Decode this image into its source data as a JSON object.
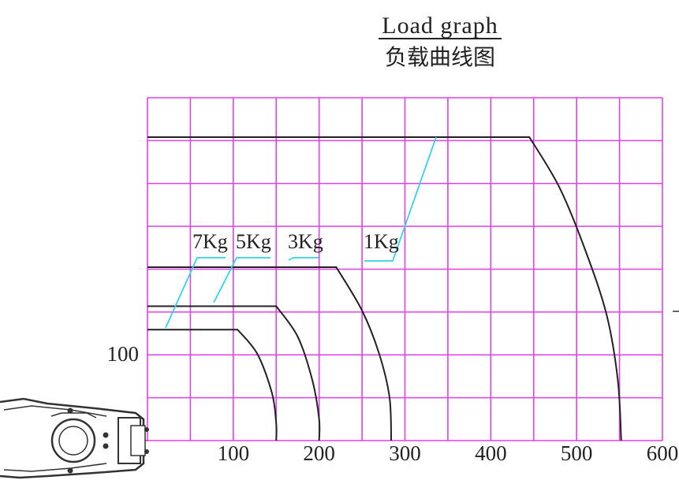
{
  "chart_data": {
    "type": "line",
    "title": "Load graph",
    "subtitle": "负载曲线图",
    "xlabel": "",
    "ylabel": "",
    "grid": true,
    "xlim": [
      0,
      600
    ],
    "ylim": [
      0,
      400
    ],
    "x_ticks": [
      "100",
      "200",
      "300",
      "400",
      "500",
      "600"
    ],
    "y_ticks": [
      "100"
    ],
    "series": [
      {
        "name": "1Kg",
        "points": [
          [
            0,
            350
          ],
          [
            445,
            350
          ],
          [
            480,
            292
          ],
          [
            510,
            220
          ],
          [
            535,
            145
          ],
          [
            548,
            70
          ],
          [
            552,
            0
          ]
        ]
      },
      {
        "name": "3Kg",
        "points": [
          [
            0,
            200
          ],
          [
            220,
            200
          ],
          [
            250,
            150
          ],
          [
            270,
            100
          ],
          [
            282,
            50
          ],
          [
            284,
            0
          ]
        ]
      },
      {
        "name": "5Kg",
        "points": [
          [
            0,
            155
          ],
          [
            150,
            155
          ],
          [
            175,
            120
          ],
          [
            192,
            70
          ],
          [
            200,
            25
          ],
          [
            200,
            0
          ]
        ]
      },
      {
        "name": "7Kg",
        "points": [
          [
            0,
            128
          ],
          [
            105,
            128
          ],
          [
            128,
            100
          ],
          [
            145,
            55
          ],
          [
            150,
            20
          ],
          [
            150,
            0
          ]
        ]
      }
    ],
    "colors": {
      "grid": "#e040e8",
      "curve": "#222222",
      "leader": "#34d3e8",
      "robot": "#333333",
      "centerline": "#e0302a"
    }
  }
}
